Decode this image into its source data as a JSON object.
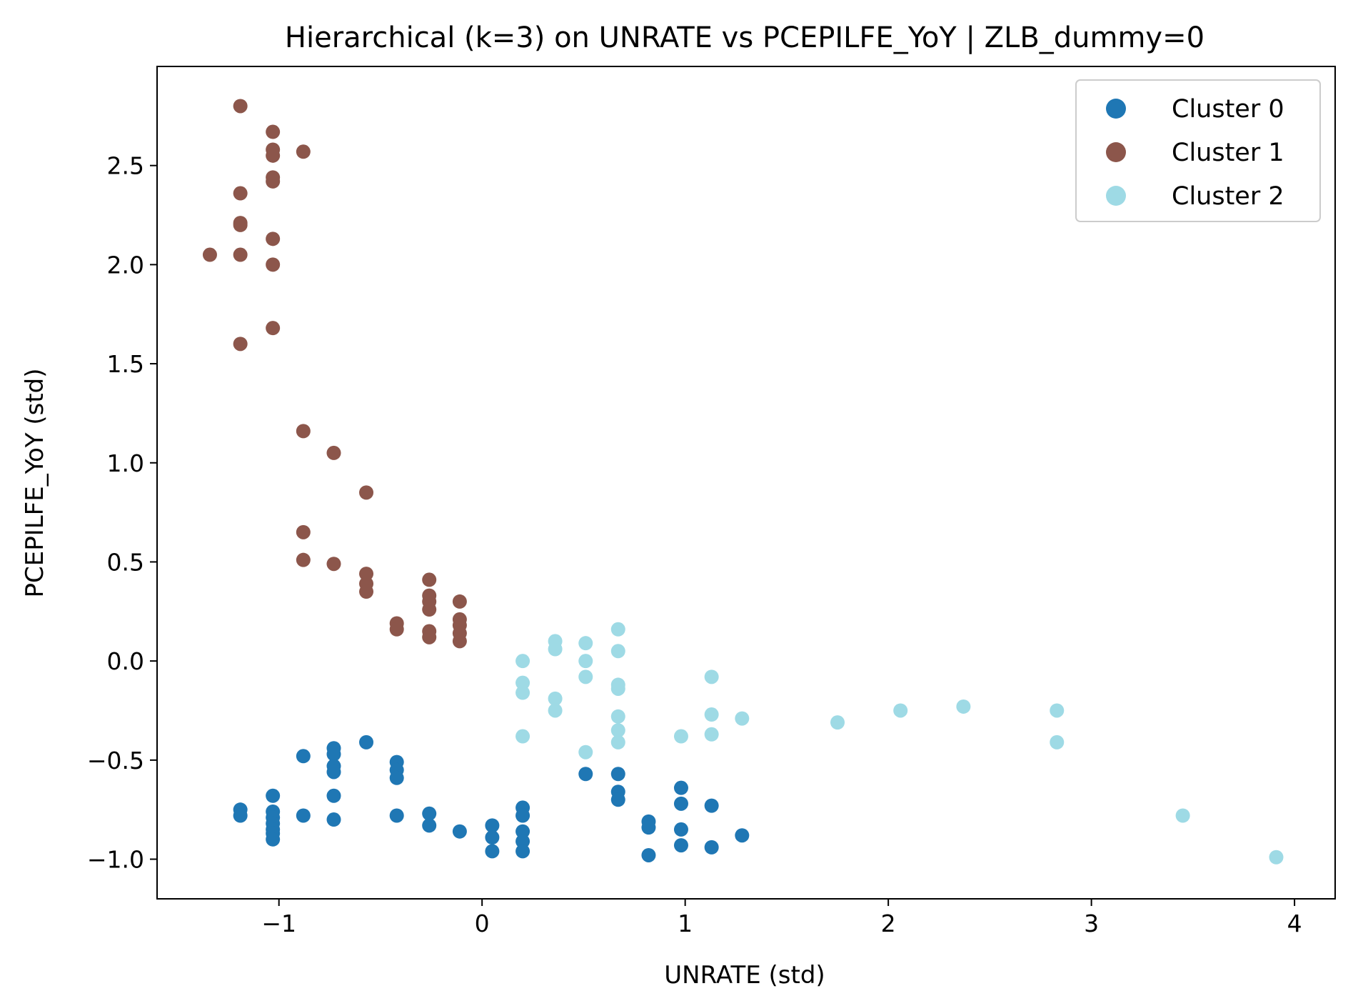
{
  "chart_data": {
    "type": "scatter",
    "title": "Hierarchical (k=3) on UNRATE vs PCEPILFE_YoY | ZLB_dummy=0",
    "xlabel": "UNRATE (std)",
    "ylabel": "PCEPILFE_YoY (std)",
    "xlim": [
      -1.6,
      4.2
    ],
    "ylim": [
      -1.2,
      3.0
    ],
    "xticks": [
      -1,
      0,
      1,
      2,
      3,
      4
    ],
    "xtick_labels": [
      "−1",
      "0",
      "1",
      "2",
      "3",
      "4"
    ],
    "yticks": [
      -1.0,
      -0.5,
      0.0,
      0.5,
      1.0,
      1.5,
      2.0,
      2.5
    ],
    "ytick_labels": [
      "−1.0",
      "−0.5",
      "0.0",
      "0.5",
      "1.0",
      "1.5",
      "2.0",
      "2.5"
    ],
    "grid": false,
    "legend_position": "upper right",
    "series": [
      {
        "name": "Cluster 0",
        "color": "#1f77b4",
        "points": [
          [
            -1.19,
            -0.75
          ],
          [
            -1.19,
            -0.78
          ],
          [
            -1.03,
            -0.68
          ],
          [
            -1.03,
            -0.76
          ],
          [
            -1.03,
            -0.79
          ],
          [
            -1.03,
            -0.82
          ],
          [
            -1.03,
            -0.85
          ],
          [
            -1.03,
            -0.87
          ],
          [
            -1.03,
            -0.9
          ],
          [
            -0.88,
            -0.48
          ],
          [
            -0.88,
            -0.78
          ],
          [
            -0.73,
            -0.44
          ],
          [
            -0.73,
            -0.47
          ],
          [
            -0.73,
            -0.53
          ],
          [
            -0.73,
            -0.56
          ],
          [
            -0.73,
            -0.68
          ],
          [
            -0.73,
            -0.8
          ],
          [
            -0.57,
            -0.41
          ],
          [
            -0.42,
            -0.51
          ],
          [
            -0.42,
            -0.55
          ],
          [
            -0.42,
            -0.59
          ],
          [
            -0.42,
            -0.78
          ],
          [
            -0.26,
            -0.77
          ],
          [
            -0.26,
            -0.83
          ],
          [
            -0.11,
            -0.86
          ],
          [
            0.05,
            -0.83
          ],
          [
            0.05,
            -0.89
          ],
          [
            0.05,
            -0.96
          ],
          [
            0.2,
            -0.74
          ],
          [
            0.2,
            -0.78
          ],
          [
            0.2,
            -0.86
          ],
          [
            0.2,
            -0.91
          ],
          [
            0.2,
            -0.96
          ],
          [
            0.51,
            -0.57
          ],
          [
            0.67,
            -0.57
          ],
          [
            0.67,
            -0.66
          ],
          [
            0.67,
            -0.7
          ],
          [
            0.82,
            -0.81
          ],
          [
            0.82,
            -0.84
          ],
          [
            0.82,
            -0.98
          ],
          [
            0.98,
            -0.64
          ],
          [
            0.98,
            -0.72
          ],
          [
            0.98,
            -0.85
          ],
          [
            0.98,
            -0.93
          ],
          [
            1.13,
            -0.73
          ],
          [
            1.13,
            -0.94
          ],
          [
            1.28,
            -0.88
          ]
        ]
      },
      {
        "name": "Cluster 1",
        "color": "#8c564b",
        "points": [
          [
            -1.34,
            2.05
          ],
          [
            -1.19,
            2.8
          ],
          [
            -1.19,
            2.36
          ],
          [
            -1.19,
            2.21
          ],
          [
            -1.19,
            2.2
          ],
          [
            -1.19,
            2.05
          ],
          [
            -1.19,
            1.6
          ],
          [
            -1.03,
            2.67
          ],
          [
            -1.03,
            2.58
          ],
          [
            -1.03,
            2.55
          ],
          [
            -1.03,
            2.44
          ],
          [
            -1.03,
            2.42
          ],
          [
            -1.03,
            2.13
          ],
          [
            -1.03,
            2.0
          ],
          [
            -1.03,
            1.68
          ],
          [
            -0.88,
            2.57
          ],
          [
            -0.88,
            1.16
          ],
          [
            -0.88,
            0.65
          ],
          [
            -0.88,
            0.51
          ],
          [
            -0.73,
            1.05
          ],
          [
            -0.73,
            0.49
          ],
          [
            -0.57,
            0.85
          ],
          [
            -0.57,
            0.44
          ],
          [
            -0.57,
            0.39
          ],
          [
            -0.57,
            0.35
          ],
          [
            -0.42,
            0.19
          ],
          [
            -0.42,
            0.16
          ],
          [
            -0.26,
            0.41
          ],
          [
            -0.26,
            0.33
          ],
          [
            -0.26,
            0.3
          ],
          [
            -0.26,
            0.26
          ],
          [
            -0.26,
            0.15
          ],
          [
            -0.26,
            0.12
          ],
          [
            -0.11,
            0.3
          ],
          [
            -0.11,
            0.21
          ],
          [
            -0.11,
            0.18
          ],
          [
            -0.11,
            0.14
          ],
          [
            -0.11,
            0.1
          ]
        ]
      },
      {
        "name": "Cluster 2",
        "color": "#9edae5",
        "points": [
          [
            0.2,
            0.0
          ],
          [
            0.2,
            -0.11
          ],
          [
            0.2,
            -0.16
          ],
          [
            0.2,
            -0.38
          ],
          [
            0.36,
            0.1
          ],
          [
            0.36,
            0.06
          ],
          [
            0.36,
            -0.19
          ],
          [
            0.36,
            -0.25
          ],
          [
            0.51,
            0.09
          ],
          [
            0.51,
            0.0
          ],
          [
            0.51,
            -0.08
          ],
          [
            0.51,
            -0.46
          ],
          [
            0.67,
            0.16
          ],
          [
            0.67,
            0.05
          ],
          [
            0.67,
            -0.12
          ],
          [
            0.67,
            -0.14
          ],
          [
            0.67,
            -0.28
          ],
          [
            0.67,
            -0.35
          ],
          [
            0.67,
            -0.41
          ],
          [
            0.98,
            -0.38
          ],
          [
            1.13,
            -0.08
          ],
          [
            1.13,
            -0.27
          ],
          [
            1.13,
            -0.37
          ],
          [
            1.28,
            -0.29
          ],
          [
            1.75,
            -0.31
          ],
          [
            2.06,
            -0.25
          ],
          [
            2.37,
            -0.23
          ],
          [
            2.83,
            -0.25
          ],
          [
            2.83,
            -0.41
          ],
          [
            3.45,
            -0.78
          ],
          [
            3.91,
            -0.99
          ]
        ]
      }
    ]
  }
}
